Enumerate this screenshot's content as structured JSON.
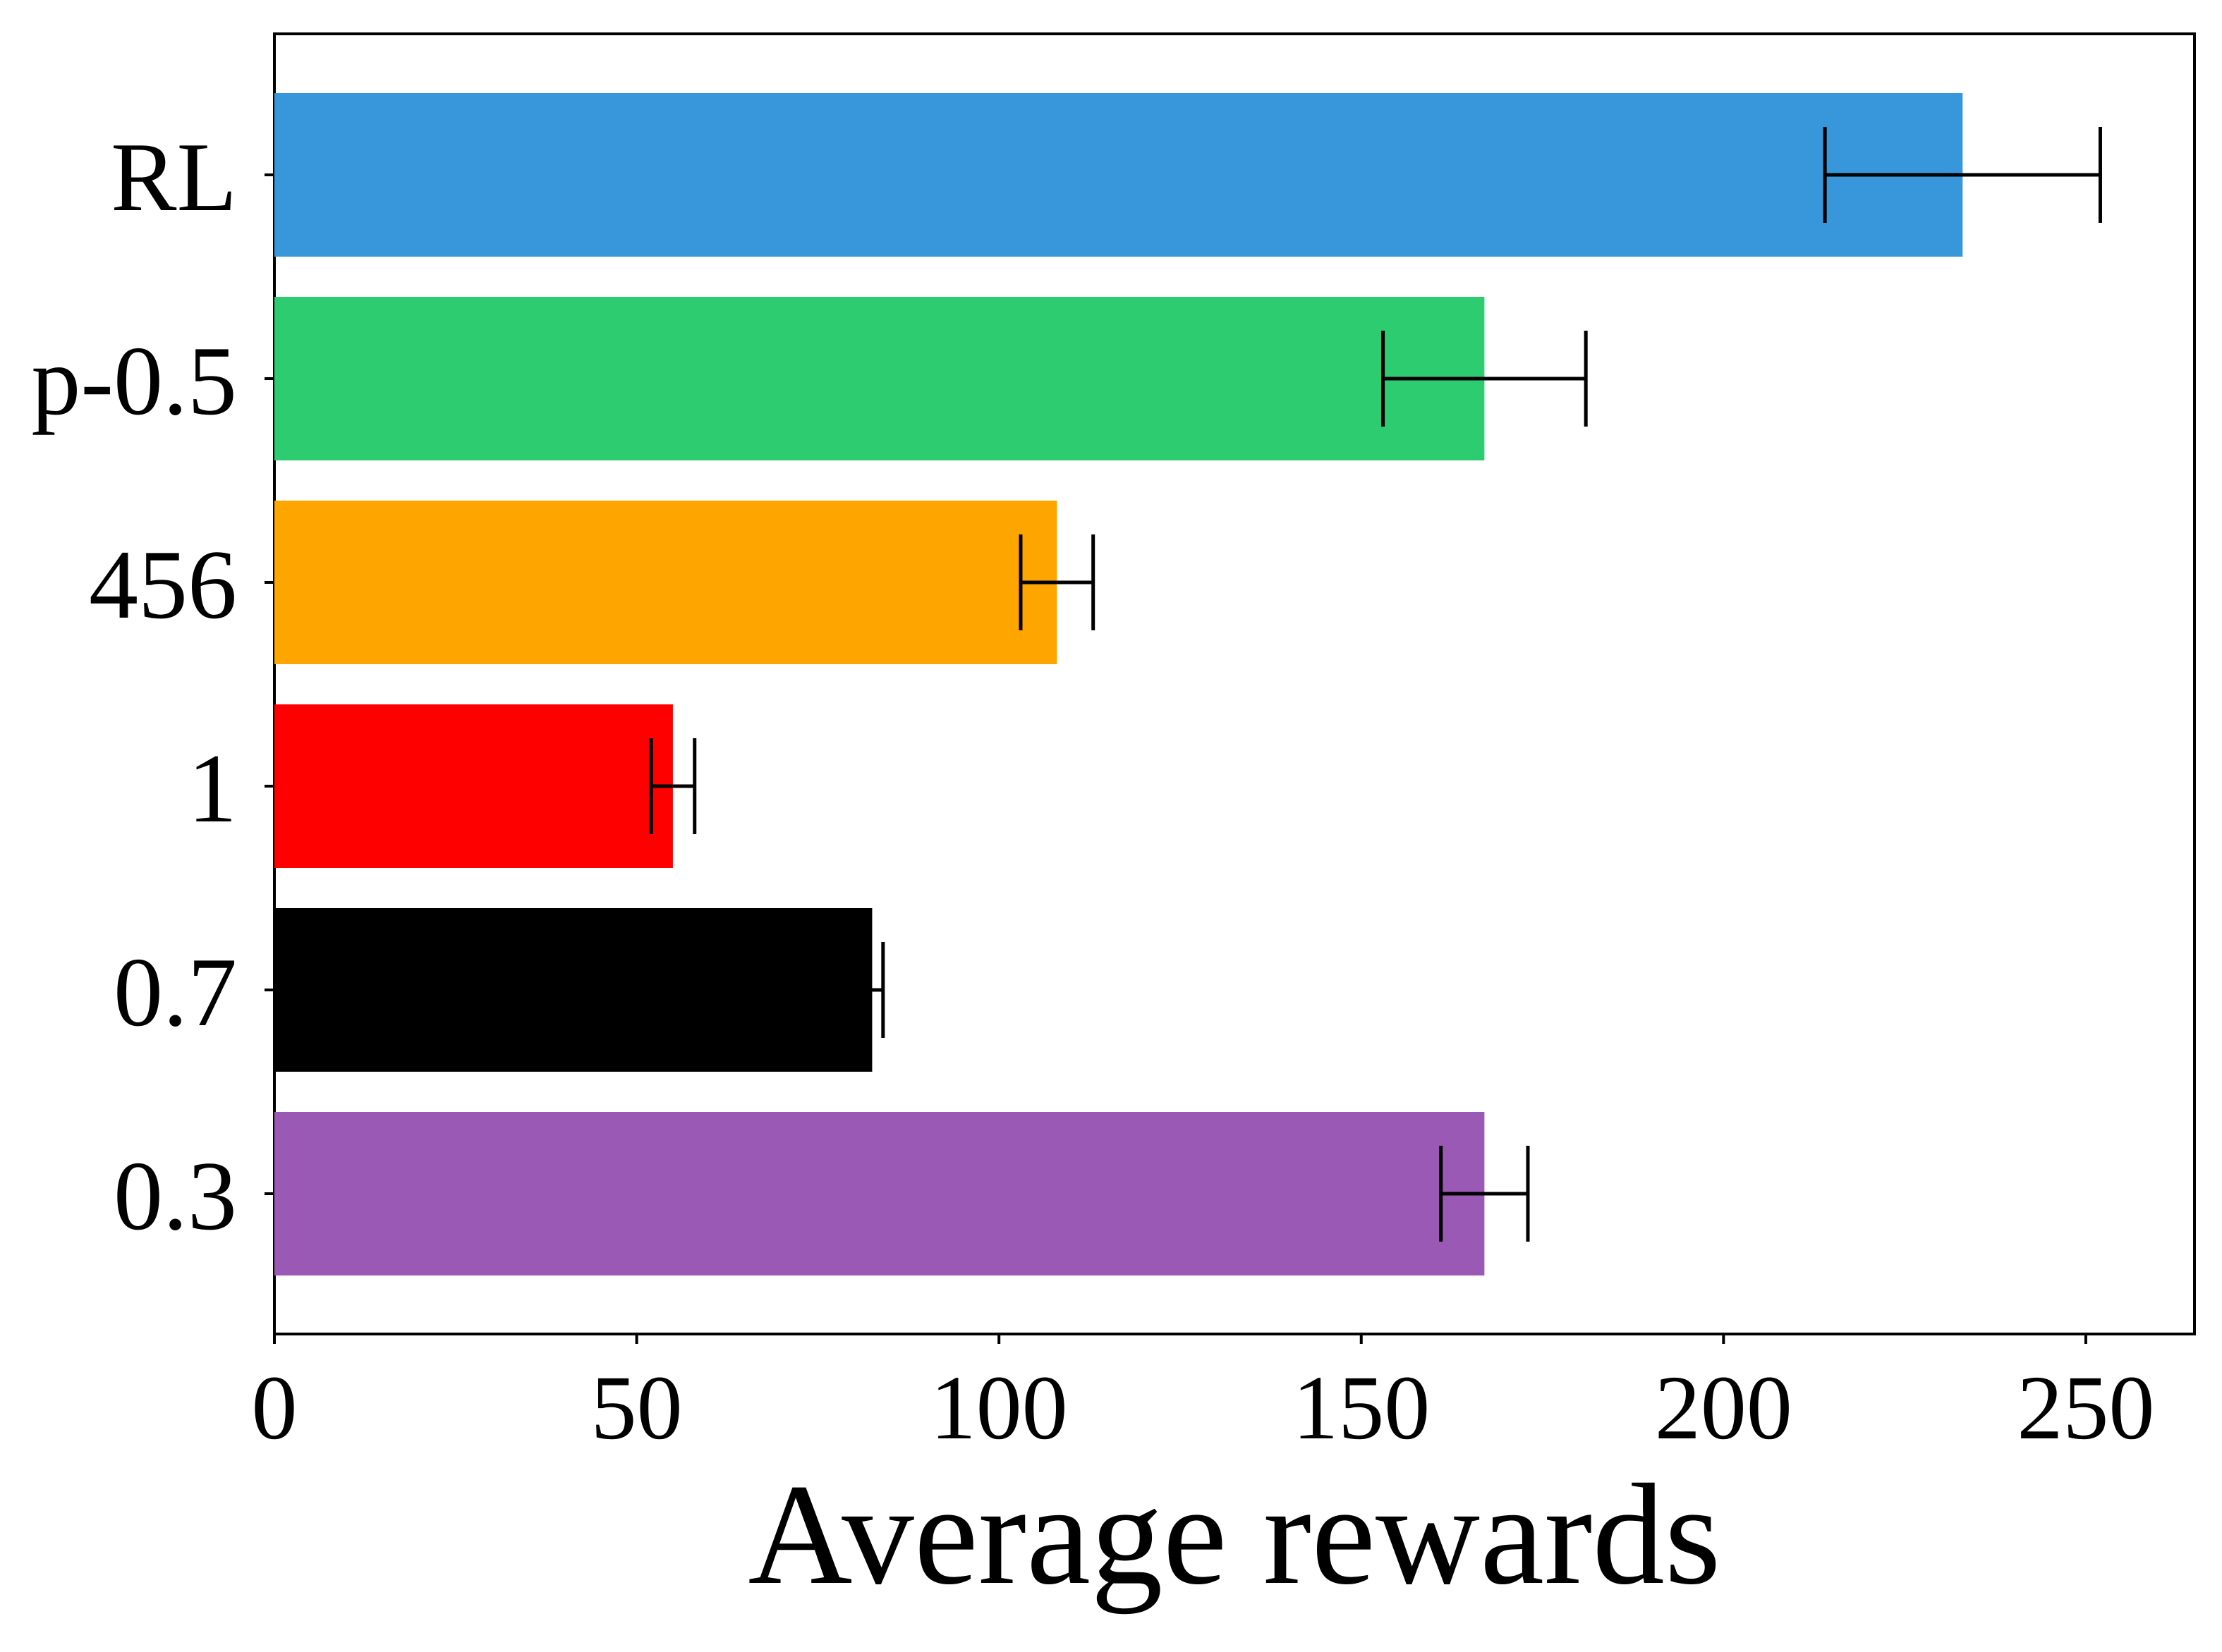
{
  "chart_data": {
    "type": "bar",
    "orientation": "horizontal",
    "categories": [
      "RL",
      "p-0.5",
      "456",
      "1",
      "0.7",
      "0.3"
    ],
    "values": [
      233,
      167,
      108,
      55,
      82.5,
      167
    ],
    "errors": [
      19,
      14,
      5,
      3,
      1.5,
      6
    ],
    "colors": [
      "#3897DB",
      "#2ECC71",
      "#FFA500",
      "#FF0000",
      "#000000",
      "#9B59B6"
    ],
    "title": "",
    "xlabel": "Average rewards",
    "ylabel": "",
    "xlim": [
      0,
      265
    ],
    "xticks": [
      0,
      50,
      100,
      150,
      200,
      250
    ],
    "xtick_labels": [
      "0",
      "50",
      "100",
      "150",
      "200",
      "250"
    ],
    "grid": false
  }
}
